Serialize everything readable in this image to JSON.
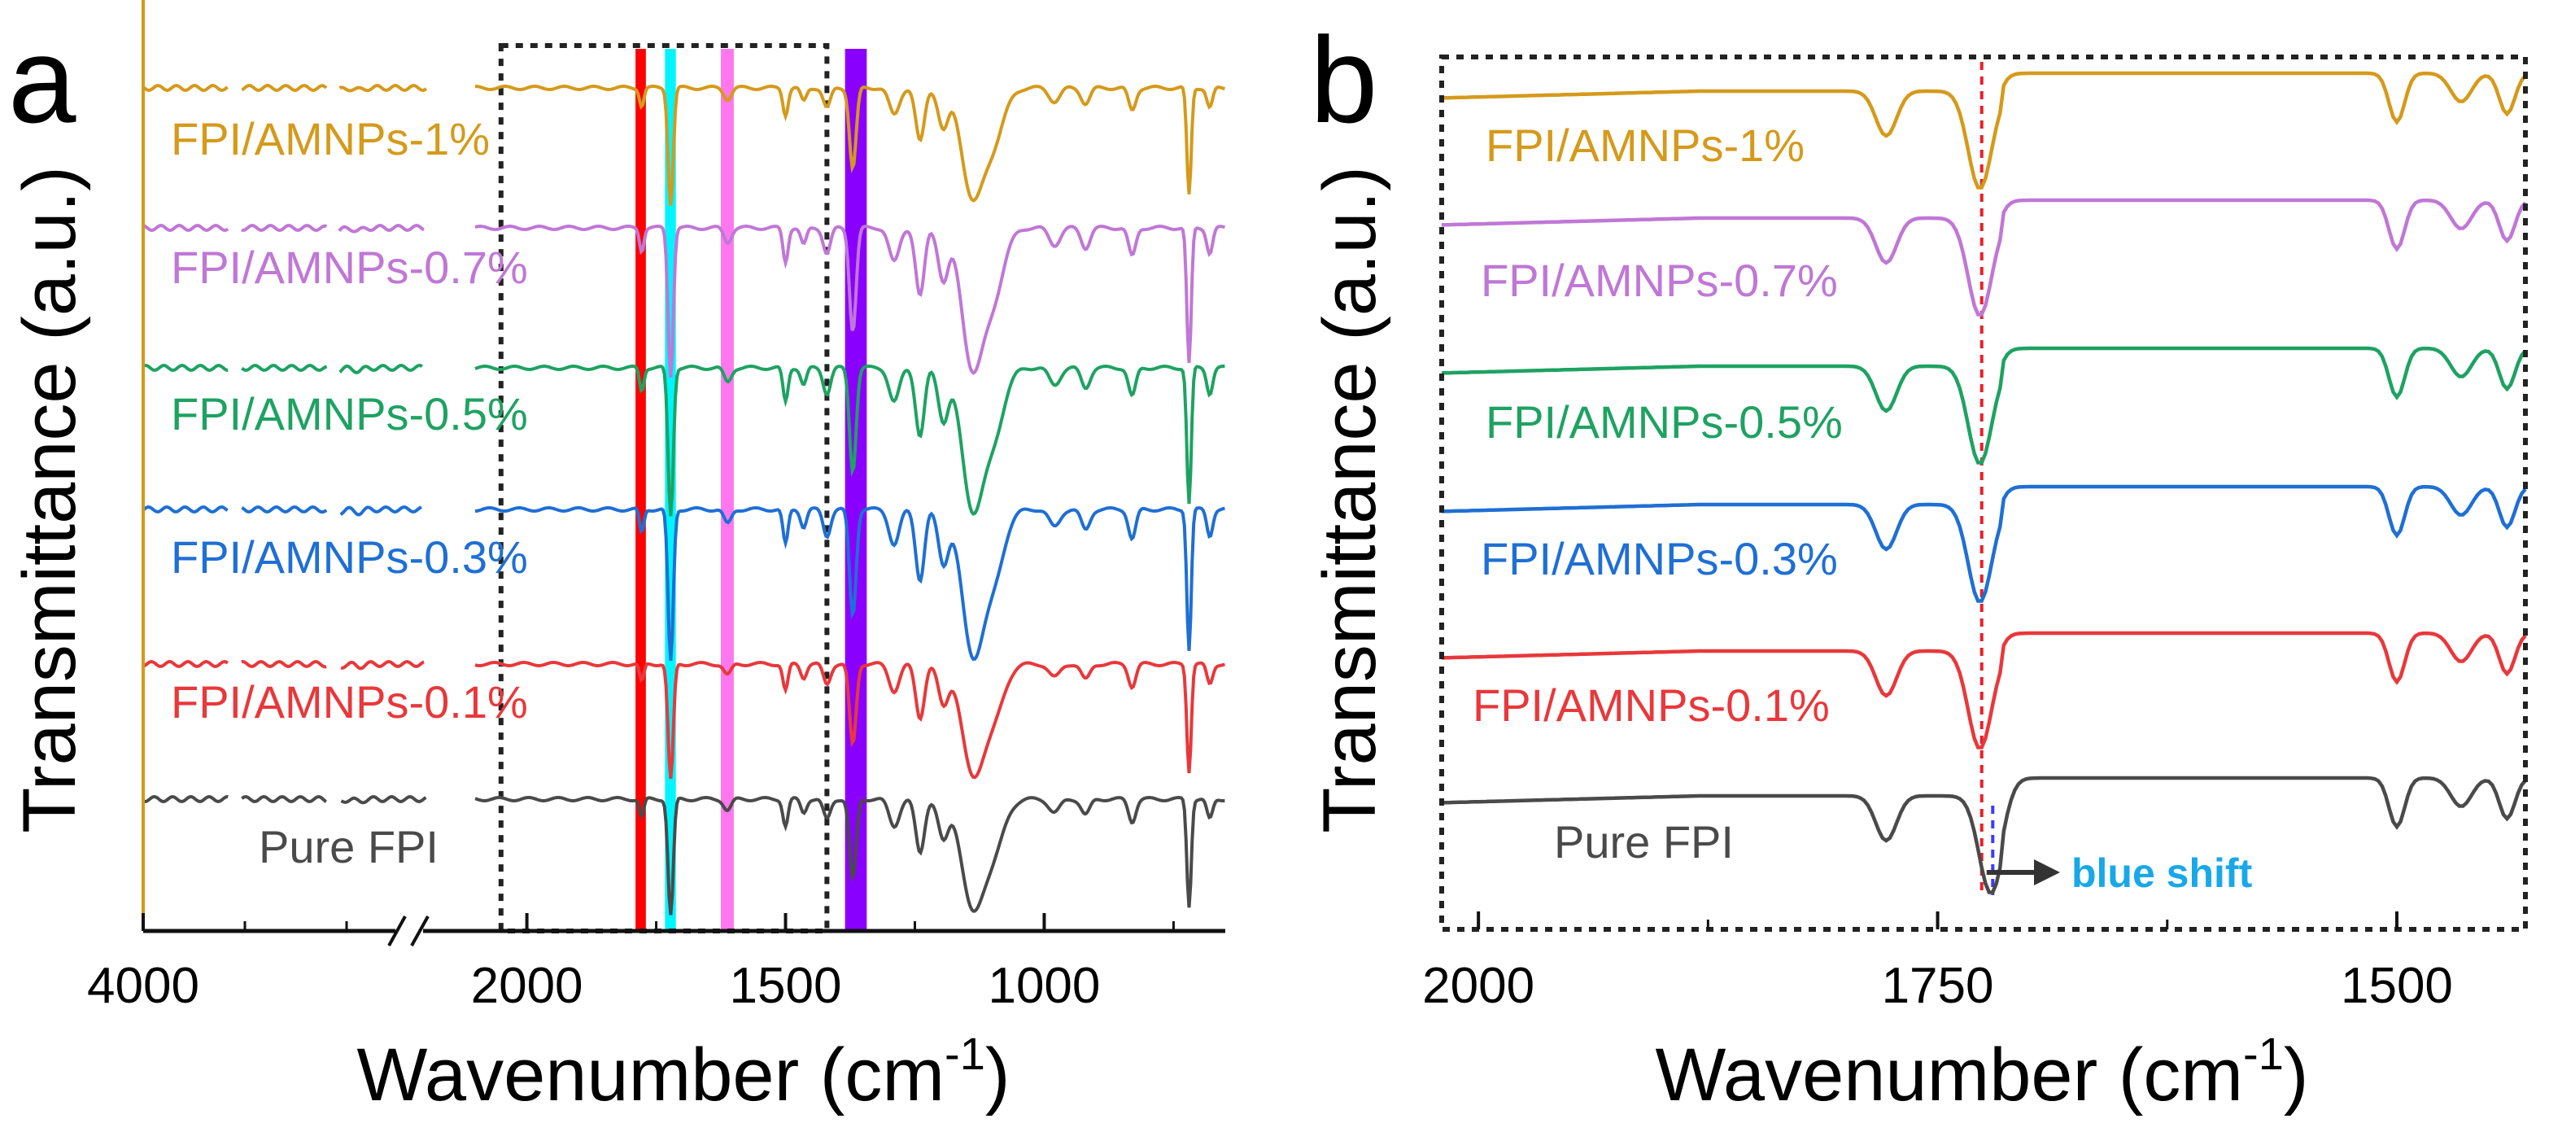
{
  "colors": {
    "pure": "#4a4a4a",
    "p01": "#e8383b",
    "p03": "#1f6fd4",
    "p05": "#1ea262",
    "p07": "#c077d6",
    "p1": "#d59a1b",
    "band_red": "#ff0000",
    "band_cyan": "#00f5ff",
    "band_pink": "#ff77ee",
    "band_violet": "#8a00ff",
    "guide_red": "#e8202a",
    "guide_blue": "#3a3aff",
    "annot_blue": "#18a8e8",
    "arrow": "#333333"
  },
  "chart_data": [
    {
      "panel": "a",
      "type": "line",
      "xlabel_main": "Wavenumber (cm",
      "xlabel_sup": "-1",
      "xlabel_tail": ")",
      "ylabel": "Transmittance (a.u.)",
      "x_axis": "broken (4000–2600, then 2100–650); reversed",
      "x_ticks": [
        "4000",
        "2000",
        "1500",
        "1000"
      ],
      "x_tick_values": [
        4000,
        2000,
        1500,
        1000
      ],
      "y_ticks_shown": false,
      "series": [
        {
          "name": "FPI/AMNPs-1%",
          "color_key": "p1"
        },
        {
          "name": "FPI/AMNPs-0.7%",
          "color_key": "p07"
        },
        {
          "name": "FPI/AMNPs-0.5%",
          "color_key": "p05"
        },
        {
          "name": "FPI/AMNPs-0.3%",
          "color_key": "p03"
        },
        {
          "name": "FPI/AMNPs-0.1%",
          "color_key": "p01"
        },
        {
          "name": "Pure FPI",
          "color_key": "pure"
        }
      ],
      "peaks_cm-1": [
        1778,
        1722,
        1612,
        1500,
        1465,
        1370,
        1240,
        1195,
        1140,
        1100,
        720
      ],
      "highlight_bands_cm-1": [
        {
          "from": 1790,
          "to": 1770,
          "color_key": "band_red"
        },
        {
          "from": 1733,
          "to": 1712,
          "color_key": "band_cyan"
        },
        {
          "from": 1625,
          "to": 1600,
          "color_key": "band_pink"
        },
        {
          "from": 1385,
          "to": 1343,
          "color_key": "band_violet"
        }
      ],
      "zoom_box_cm-1": [
        2050,
        1420
      ]
    },
    {
      "panel": "b",
      "type": "line",
      "xlabel_main": "Wavenumber (cm",
      "xlabel_sup": "-1",
      "xlabel_tail": ")",
      "ylabel": "Transmittance (a.u.)",
      "xlim": [
        2020,
        1430
      ],
      "x_ticks": [
        "2000",
        "1750",
        "1500"
      ],
      "x_tick_values": [
        2000,
        1750,
        1500
      ],
      "y_ticks_shown": false,
      "series": [
        {
          "name": "FPI/AMNPs-1%",
          "color_key": "p1"
        },
        {
          "name": "FPI/AMNPs-0.7%",
          "color_key": "p07"
        },
        {
          "name": "FPI/AMNPs-0.5%",
          "color_key": "p05"
        },
        {
          "name": "FPI/AMNPs-0.3%",
          "color_key": "p03"
        },
        {
          "name": "FPI/AMNPs-0.1%",
          "color_key": "p01"
        },
        {
          "name": "Pure FPI",
          "color_key": "pure"
        }
      ],
      "peak_pure_cm-1": 1720,
      "peak_composite_cm-1": 1726,
      "annotation": "blue shift"
    }
  ]
}
